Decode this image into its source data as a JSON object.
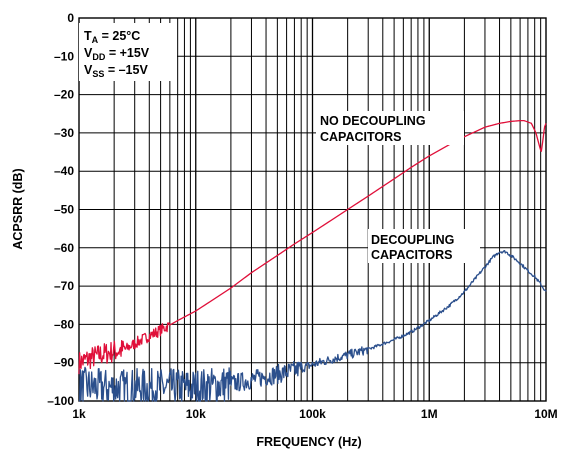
{
  "chart_data": {
    "type": "line",
    "title": "",
    "xlabel": "FREQUENCY (Hz)",
    "ylabel": "ACPSRR (dB)",
    "xscale": "log",
    "xlim": [
      1000,
      10000000
    ],
    "ylim": [
      -100,
      0
    ],
    "grid": true,
    "x_ticks": [
      {
        "value": 1000,
        "label": "1k"
      },
      {
        "value": 10000,
        "label": "10k"
      },
      {
        "value": 100000,
        "label": "100k"
      },
      {
        "value": 1000000,
        "label": "1M"
      },
      {
        "value": 10000000,
        "label": "10M"
      }
    ],
    "y_ticks": [
      {
        "value": 0,
        "label": "0"
      },
      {
        "value": -10,
        "label": "–10"
      },
      {
        "value": -20,
        "label": "–20"
      },
      {
        "value": -30,
        "label": "–30"
      },
      {
        "value": -40,
        "label": "–40"
      },
      {
        "value": -50,
        "label": "–50"
      },
      {
        "value": -60,
        "label": "–60"
      },
      {
        "value": -70,
        "label": "–70"
      },
      {
        "value": -80,
        "label": "–80"
      },
      {
        "value": -90,
        "label": "–90"
      },
      {
        "value": -100,
        "label": "–100"
      }
    ],
    "conditions": {
      "ta": {
        "main": "T",
        "sub": "A",
        "rest": " = 25°C"
      },
      "vdd": {
        "main": "V",
        "sub": "DD",
        "rest": " = +15V"
      },
      "vss": {
        "main": "V",
        "sub": "SS",
        "rest": " = –15V"
      }
    },
    "series": [
      {
        "name": "NO DECOUPLING CAPACITORS",
        "label_lines": [
          "NO DECOUPLING",
          "CAPACITORS"
        ],
        "color": "#e0103a",
        "points": [
          [
            1000,
            -90
          ],
          [
            1200,
            -89
          ],
          [
            1500,
            -88
          ],
          [
            2000,
            -87
          ],
          [
            2500,
            -86.5
          ],
          [
            3000,
            -85
          ],
          [
            4000,
            -83
          ],
          [
            5000,
            -81.5
          ],
          [
            7000,
            -79
          ],
          [
            10000,
            -76.5
          ],
          [
            15000,
            -73
          ],
          [
            20000,
            -70.5
          ],
          [
            30000,
            -66.5
          ],
          [
            50000,
            -62
          ],
          [
            70000,
            -59
          ],
          [
            100000,
            -56
          ],
          [
            150000,
            -52.5
          ],
          [
            200000,
            -50
          ],
          [
            300000,
            -46.5
          ],
          [
            500000,
            -42
          ],
          [
            700000,
            -39
          ],
          [
            1000000,
            -36
          ],
          [
            1500000,
            -33
          ],
          [
            2000000,
            -31
          ],
          [
            3000000,
            -28.5
          ],
          [
            4000000,
            -27.5
          ],
          [
            5000000,
            -27
          ],
          [
            6000000,
            -26.8
          ],
          [
            6500000,
            -26.8
          ],
          [
            7500000,
            -27.5
          ],
          [
            8200000,
            -30
          ],
          [
            8800000,
            -33.5
          ],
          [
            9100000,
            -35
          ],
          [
            9400000,
            -32
          ],
          [
            9700000,
            -28.5
          ],
          [
            10000000,
            -27.5
          ]
        ]
      },
      {
        "name": "DECOUPLING CAPACITORS",
        "label_lines": [
          "DECOUPLING",
          "CAPACITORS"
        ],
        "color": "#2b4f8c",
        "points": [
          [
            1000,
            -96
          ],
          [
            1500,
            -96.5
          ],
          [
            2000,
            -96.5
          ],
          [
            3000,
            -96.5
          ],
          [
            5000,
            -96.5
          ],
          [
            7000,
            -96.5
          ],
          [
            10000,
            -96.5
          ],
          [
            15000,
            -96
          ],
          [
            20000,
            -95.5
          ],
          [
            30000,
            -94.5
          ],
          [
            50000,
            -93
          ],
          [
            70000,
            -92
          ],
          [
            100000,
            -90.5
          ],
          [
            150000,
            -89
          ],
          [
            200000,
            -88
          ],
          [
            300000,
            -86.5
          ],
          [
            500000,
            -84
          ],
          [
            700000,
            -82
          ],
          [
            1000000,
            -79
          ],
          [
            1500000,
            -75
          ],
          [
            2000000,
            -71.5
          ],
          [
            3000000,
            -65
          ],
          [
            3500000,
            -62.5
          ],
          [
            4000000,
            -61
          ],
          [
            4500000,
            -61
          ],
          [
            5000000,
            -62
          ],
          [
            6000000,
            -64
          ],
          [
            7000000,
            -66
          ],
          [
            8000000,
            -67.5
          ],
          [
            9000000,
            -69.5
          ],
          [
            10000000,
            -71.5
          ]
        ]
      }
    ]
  }
}
